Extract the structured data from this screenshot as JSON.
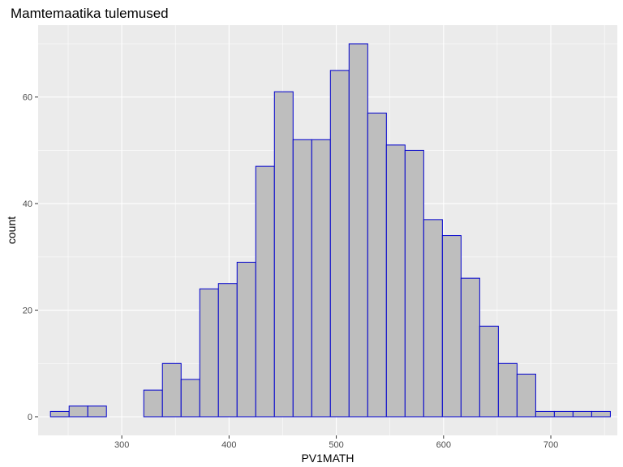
{
  "chart_data": {
    "type": "bar",
    "title": "Mamtemaatika tulemused",
    "xlabel": "PV1MATH",
    "ylabel": "count",
    "xlim": [
      222,
      762
    ],
    "ylim": [
      -3.5,
      73.5
    ],
    "x_ticks": [
      300,
      400,
      500,
      600,
      700
    ],
    "y_ticks": [
      0,
      20,
      40,
      60
    ],
    "grid": true,
    "legend": "none",
    "bins": [
      {
        "x0": 233.5,
        "x1": 250.9,
        "count": 1
      },
      {
        "x0": 250.9,
        "x1": 268.3,
        "count": 2
      },
      {
        "x0": 268.3,
        "x1": 285.7,
        "count": 2
      },
      {
        "x0": 285.7,
        "x1": 303.1,
        "count": 0
      },
      {
        "x0": 303.1,
        "x1": 320.5,
        "count": 0
      },
      {
        "x0": 320.5,
        "x1": 337.9,
        "count": 5
      },
      {
        "x0": 337.9,
        "x1": 355.3,
        "count": 10
      },
      {
        "x0": 355.3,
        "x1": 372.7,
        "count": 7
      },
      {
        "x0": 372.7,
        "x1": 390.1,
        "count": 24
      },
      {
        "x0": 390.1,
        "x1": 407.5,
        "count": 25
      },
      {
        "x0": 407.5,
        "x1": 424.9,
        "count": 29
      },
      {
        "x0": 424.9,
        "x1": 442.3,
        "count": 47
      },
      {
        "x0": 442.3,
        "x1": 459.7,
        "count": 61
      },
      {
        "x0": 459.7,
        "x1": 477.1,
        "count": 52
      },
      {
        "x0": 477.1,
        "x1": 494.5,
        "count": 52
      },
      {
        "x0": 494.5,
        "x1": 511.9,
        "count": 65
      },
      {
        "x0": 511.9,
        "x1": 529.3,
        "count": 70
      },
      {
        "x0": 529.3,
        "x1": 546.7,
        "count": 57
      },
      {
        "x0": 546.7,
        "x1": 564.1,
        "count": 51
      },
      {
        "x0": 564.1,
        "x1": 581.5,
        "count": 50
      },
      {
        "x0": 581.5,
        "x1": 598.9,
        "count": 37
      },
      {
        "x0": 598.9,
        "x1": 616.3,
        "count": 34
      },
      {
        "x0": 616.3,
        "x1": 633.7,
        "count": 26
      },
      {
        "x0": 633.7,
        "x1": 651.1,
        "count": 17
      },
      {
        "x0": 651.1,
        "x1": 668.5,
        "count": 10
      },
      {
        "x0": 668.5,
        "x1": 685.9,
        "count": 8
      },
      {
        "x0": 685.9,
        "x1": 703.3,
        "count": 1
      },
      {
        "x0": 703.3,
        "x1": 720.7,
        "count": 1
      },
      {
        "x0": 720.7,
        "x1": 738.1,
        "count": 1
      },
      {
        "x0": 738.1,
        "x1": 755.5,
        "count": 1
      }
    ],
    "colors": {
      "bar_fill": "#bebebe",
      "bar_stroke": "#0000cd",
      "panel_background": "#ebebeb",
      "grid_major": "#ffffff",
      "tick_text": "#4d4d4d"
    }
  }
}
